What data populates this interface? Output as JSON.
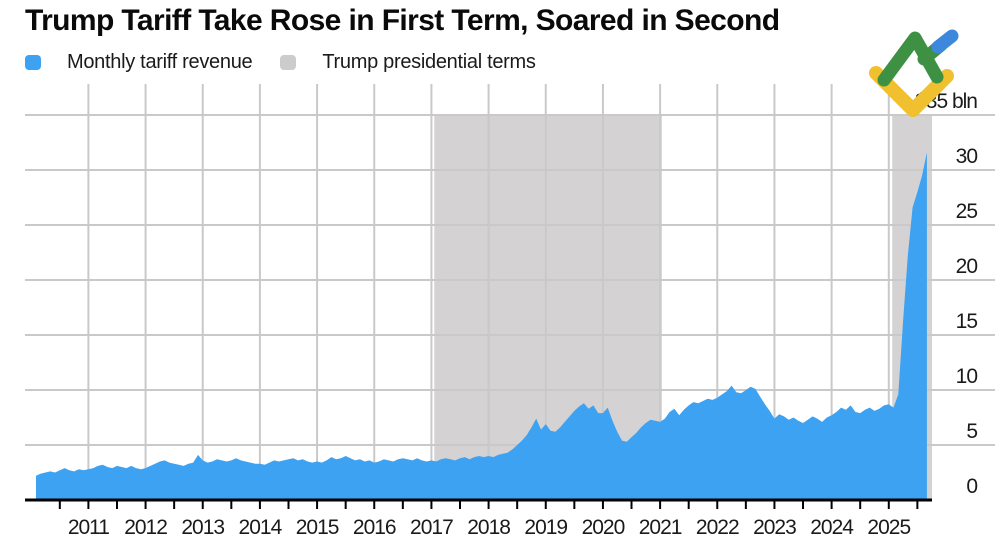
{
  "header": {
    "title": "Trump Tariff Take Rose in First Term, Soared in Second"
  },
  "legend": [
    {
      "label": "Monthly tariff revenue",
      "color": "#3da2f2"
    },
    {
      "label": "Trump presidential terms",
      "color": "#cccccc"
    }
  ],
  "logo": {
    "name": "litefinance-logo",
    "colors": {
      "green": "#3e9142",
      "yellow": "#f0c02e",
      "blue": "#3d87dd"
    }
  },
  "chart_data": {
    "type": "area",
    "title": "Trump Tariff Take Rose in First Term, Soared in Second",
    "legend_position": "top-left",
    "grid": true,
    "colors": {
      "area": "#3da2f2",
      "band": "#d4d2d2",
      "gridline": "#c9c9c9",
      "axis": "#000000"
    },
    "x_axis": {
      "tick_years": [
        2011,
        2012,
        2013,
        2014,
        2015,
        2016,
        2017,
        2018,
        2019,
        2020,
        2021,
        2022,
        2023,
        2024,
        2025
      ],
      "minor_tick_interval_years": 0.5,
      "range": [
        2010.0,
        2025.8
      ]
    },
    "y_axis": {
      "ticks": [
        0,
        5,
        10,
        15,
        20,
        25,
        30
      ],
      "top_value": 35,
      "top_label": "$35 bln",
      "range": [
        0,
        35
      ],
      "side": "right",
      "unit": "USD bln"
    },
    "bands": [
      {
        "name": "Trump first presidential term",
        "start": 2017.05,
        "end": 2021.03
      },
      {
        "name": "Trump second presidential term",
        "start": 2025.06,
        "end": 2025.76
      }
    ],
    "series": [
      {
        "name": "Monthly tariff revenue",
        "unit": "USD bln",
        "frequency": "monthly",
        "start": "2010-02",
        "values": [
          2.2,
          2.4,
          2.5,
          2.6,
          2.5,
          2.7,
          2.9,
          2.7,
          2.6,
          2.8,
          2.7,
          2.8,
          2.9,
          3.1,
          3.2,
          3.0,
          2.9,
          3.1,
          3.0,
          2.9,
          3.1,
          2.9,
          2.8,
          2.9,
          3.1,
          3.3,
          3.5,
          3.6,
          3.4,
          3.3,
          3.2,
          3.1,
          3.3,
          3.4,
          4.1,
          3.6,
          3.4,
          3.5,
          3.7,
          3.6,
          3.5,
          3.6,
          3.8,
          3.6,
          3.5,
          3.4,
          3.3,
          3.3,
          3.2,
          3.4,
          3.6,
          3.5,
          3.6,
          3.7,
          3.8,
          3.6,
          3.7,
          3.5,
          3.4,
          3.5,
          3.4,
          3.6,
          3.9,
          3.7,
          3.8,
          4.0,
          3.8,
          3.6,
          3.7,
          3.5,
          3.6,
          3.4,
          3.5,
          3.7,
          3.6,
          3.5,
          3.7,
          3.8,
          3.7,
          3.6,
          3.8,
          3.6,
          3.5,
          3.6,
          3.5,
          3.7,
          3.8,
          3.7,
          3.6,
          3.8,
          3.9,
          3.7,
          3.9,
          4.0,
          3.9,
          4.0,
          3.9,
          4.1,
          4.2,
          4.3,
          4.6,
          5.0,
          5.4,
          5.9,
          6.6,
          7.4,
          6.4,
          6.9,
          6.3,
          6.2,
          6.6,
          7.1,
          7.6,
          8.1,
          8.5,
          8.8,
          8.3,
          8.6,
          7.9,
          7.9,
          8.4,
          7.2,
          6.2,
          5.4,
          5.3,
          5.7,
          6.1,
          6.6,
          7.0,
          7.3,
          7.2,
          7.1,
          7.4,
          8.0,
          8.3,
          7.7,
          8.2,
          8.6,
          8.9,
          8.8,
          9.0,
          9.2,
          9.1,
          9.3,
          9.6,
          9.9,
          10.4,
          9.8,
          9.7,
          10.0,
          10.3,
          10.1,
          9.4,
          8.7,
          8.1,
          7.4,
          7.8,
          7.6,
          7.3,
          7.5,
          7.2,
          7.0,
          7.3,
          7.6,
          7.4,
          7.1,
          7.5,
          7.7,
          8.0,
          8.4,
          8.2,
          8.6,
          8.0,
          7.9,
          8.2,
          8.4,
          8.1,
          8.3,
          8.6,
          8.7,
          8.4,
          9.6,
          16.3,
          22.2,
          26.6,
          28.0,
          29.5,
          31.6
        ]
      }
    ]
  }
}
